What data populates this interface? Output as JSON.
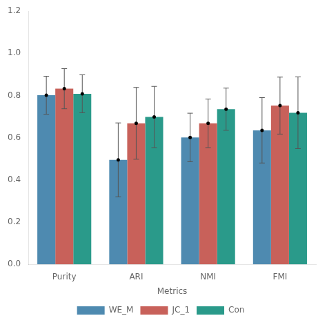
{
  "chart_data": {
    "type": "bar",
    "categories": [
      "Purity",
      "ARI",
      "NMI",
      "FMI"
    ],
    "series": [
      {
        "name": "WE_M",
        "color": "#4e8ab0",
        "values": [
          0.801,
          0.495,
          0.601,
          0.635
        ],
        "errors": [
          0.09,
          0.175,
          0.115,
          0.155
        ]
      },
      {
        "name": "JC_1",
        "color": "#c8615a",
        "values": [
          0.832,
          0.668,
          0.668,
          0.752
        ],
        "errors": [
          0.095,
          0.17,
          0.115,
          0.135
        ]
      },
      {
        "name": "Con",
        "color": "#2a9a8a",
        "values": [
          0.808,
          0.698,
          0.735,
          0.718
        ],
        "errors": [
          0.09,
          0.145,
          0.1,
          0.17
        ]
      }
    ],
    "xlabel": "Metrics",
    "ylim": [
      0,
      1.2
    ],
    "yticks": [
      {
        "value": 0,
        "label": "0.0"
      },
      0.2,
      0.4,
      0.6,
      0.8,
      {
        "value": 1,
        "label": "1.0"
      },
      1.2
    ],
    "grid": false,
    "legend": "bottom"
  }
}
